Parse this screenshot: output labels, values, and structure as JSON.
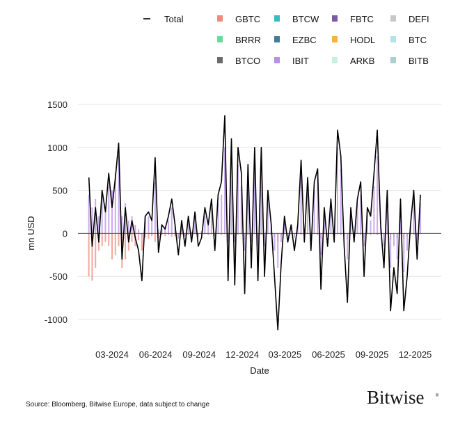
{
  "chart_data": {
    "type": "bar",
    "xlabel": "Date",
    "ylabel": "mn USD",
    "ylim": [
      -1100,
      1600
    ],
    "xlim": [
      "2023-12-20",
      "2026-01-25"
    ],
    "yticks": [
      1500,
      1000,
      500,
      0,
      -500,
      -1000
    ],
    "yticklabels": [
      "1500",
      "1000",
      "500",
      "0",
      "-500",
      "-1000"
    ],
    "xticks": [
      "2024-03-01",
      "2024-06-01",
      "2024-09-01",
      "2024-12-01",
      "2025-03-01",
      "2025-06-01",
      "2025-09-01",
      "2025-12-01"
    ],
    "xticklabels": [
      "03-2024",
      "06-2024",
      "09-2024",
      "12-2024",
      "03-2025",
      "06-2025",
      "09-2025",
      "12-2025"
    ],
    "grid": true,
    "legend_position": "top",
    "legend": [
      {
        "name": "Total",
        "kind": "line",
        "color": "#000000"
      },
      {
        "name": "GBTC",
        "color": "#f08a7e"
      },
      {
        "name": "BTCW",
        "color": "#3bb9c4"
      },
      {
        "name": "FBTC",
        "color": "#7d5aa6"
      },
      {
        "name": "DEFI",
        "color": "#c8c8c8"
      },
      {
        "name": "BRRR",
        "color": "#6fd79a"
      },
      {
        "name": "EZBC",
        "color": "#3f7f8f"
      },
      {
        "name": "HODL",
        "color": "#f5b342"
      },
      {
        "name": "BTC",
        "color": "#b0e4ea"
      },
      {
        "name": "BTCO",
        "color": "#6b6b6b"
      },
      {
        "name": "IBIT",
        "color": "#b890e8"
      },
      {
        "name": "ARKB",
        "color": "#c5f2dc"
      },
      {
        "name": "BITB",
        "color": "#a9cfd2"
      }
    ],
    "x": [
      "2024-01-12",
      "2024-01-19",
      "2024-01-26",
      "2024-02-02",
      "2024-02-09",
      "2024-02-16",
      "2024-02-23",
      "2024-03-01",
      "2024-03-08",
      "2024-03-15",
      "2024-03-22",
      "2024-03-29",
      "2024-04-05",
      "2024-04-12",
      "2024-04-19",
      "2024-04-26",
      "2024-05-03",
      "2024-05-10",
      "2024-05-17",
      "2024-05-24",
      "2024-05-31",
      "2024-06-07",
      "2024-06-14",
      "2024-06-21",
      "2024-06-28",
      "2024-07-05",
      "2024-07-12",
      "2024-07-19",
      "2024-07-26",
      "2024-08-02",
      "2024-08-09",
      "2024-08-16",
      "2024-08-23",
      "2024-08-30",
      "2024-09-06",
      "2024-09-13",
      "2024-09-20",
      "2024-09-27",
      "2024-10-04",
      "2024-10-11",
      "2024-10-18",
      "2024-10-25",
      "2024-11-01",
      "2024-11-08",
      "2024-11-15",
      "2024-11-22",
      "2024-11-29",
      "2024-12-06",
      "2024-12-13",
      "2024-12-20",
      "2024-12-27",
      "2025-01-03",
      "2025-01-10",
      "2025-01-17",
      "2025-01-24",
      "2025-01-31",
      "2025-02-07",
      "2025-02-14",
      "2025-02-21",
      "2025-02-28",
      "2025-03-07",
      "2025-03-14",
      "2025-03-21",
      "2025-03-28",
      "2025-04-04",
      "2025-04-11",
      "2025-04-18",
      "2025-04-25",
      "2025-05-02",
      "2025-05-09",
      "2025-05-16",
      "2025-05-23",
      "2025-05-30",
      "2025-06-06",
      "2025-06-13",
      "2025-06-20",
      "2025-06-27",
      "2025-07-04",
      "2025-07-11",
      "2025-07-18",
      "2025-07-25",
      "2025-08-01",
      "2025-08-08",
      "2025-08-15",
      "2025-08-22",
      "2025-08-29",
      "2025-09-05",
      "2025-09-12",
      "2025-09-19",
      "2025-09-26",
      "2025-10-03",
      "2025-10-10",
      "2025-10-17",
      "2025-10-24",
      "2025-10-31",
      "2025-11-07",
      "2025-11-14",
      "2025-11-21",
      "2025-11-28",
      "2025-12-05",
      "2025-12-12"
    ],
    "series": [
      {
        "name": "Total",
        "kind": "line",
        "values": [
          650,
          -150,
          300,
          -100,
          500,
          250,
          700,
          300,
          650,
          1050,
          -300,
          300,
          -100,
          150,
          -50,
          -200,
          -550,
          200,
          250,
          150,
          880,
          -220,
          100,
          50,
          200,
          400,
          100,
          -250,
          150,
          -150,
          200,
          -100,
          250,
          -150,
          -50,
          300,
          100,
          400,
          -200,
          450,
          600,
          1370,
          -550,
          1100,
          -600,
          1000,
          700,
          -700,
          800,
          -400,
          1000,
          -550,
          1000,
          -500,
          500,
          100,
          -500,
          -1120,
          -350,
          200,
          -100,
          100,
          -200,
          100,
          850,
          -100,
          650,
          -200,
          600,
          750,
          -650,
          300,
          -150,
          400,
          -100,
          1200,
          900,
          -150,
          -800,
          300,
          -100,
          400,
          600,
          -500,
          300,
          200,
          700,
          1200,
          100,
          -400,
          500,
          -900,
          -400,
          -700,
          400,
          -900,
          -500,
          100,
          500,
          -300,
          450
        ]
      },
      {
        "name": "GBTC",
        "values": [
          -500,
          -550,
          -400,
          -200,
          -150,
          -100,
          -150,
          -300,
          -250,
          -150,
          -400,
          -300,
          -200,
          -100,
          -150,
          -80,
          -200,
          -50,
          -60,
          -30,
          -100,
          -50,
          -20,
          -30,
          -20,
          -40,
          -30,
          -60,
          -20,
          -30,
          -20,
          -30,
          -10,
          -40,
          -20,
          -10,
          -20,
          -10,
          -30,
          -10,
          -20,
          -10,
          -50,
          -20,
          -60,
          -20,
          -10,
          -80,
          -20,
          -40,
          -10,
          -60,
          -20,
          -50,
          -10,
          -20,
          -40,
          -90,
          -30,
          -10,
          -20,
          -10,
          -30,
          -10,
          -20,
          -30,
          -10,
          -40,
          -10,
          -20,
          -60,
          -10,
          -20,
          -10,
          -30,
          -10,
          -20,
          -30,
          -60,
          -10,
          -20,
          -10,
          -20,
          -50,
          -10,
          -20,
          -10,
          -20,
          -10,
          -40,
          -10,
          -70,
          -40,
          -50,
          -10,
          -60,
          -40,
          -10,
          -20,
          -30,
          -10
        ]
      },
      {
        "name": "IBIT",
        "values": [
          450,
          300,
          400,
          200,
          450,
          300,
          550,
          500,
          700,
          900,
          200,
          350,
          150,
          200,
          100,
          50,
          -30,
          200,
          200,
          150,
          600,
          50,
          100,
          80,
          150,
          300,
          100,
          -50,
          150,
          -30,
          150,
          20,
          200,
          -20,
          30,
          200,
          100,
          300,
          -40,
          350,
          450,
          1000,
          -100,
          900,
          -100,
          800,
          550,
          -200,
          650,
          -100,
          800,
          -150,
          750,
          -150,
          450,
          100,
          -200,
          -400,
          -100,
          150,
          -40,
          100,
          -50,
          100,
          700,
          -30,
          500,
          -50,
          500,
          650,
          -250,
          250,
          -30,
          350,
          -20,
          1000,
          750,
          -30,
          -300,
          250,
          -20,
          350,
          450,
          -150,
          250,
          150,
          550,
          900,
          80,
          -150,
          450,
          -400,
          -150,
          -300,
          350,
          -450,
          -200,
          80,
          400,
          -120,
          350
        ]
      }
    ]
  },
  "footer": {
    "source": "Source: Bloomberg, Bitwise Europe, data subject to change",
    "logo_text": "Bitwise"
  }
}
